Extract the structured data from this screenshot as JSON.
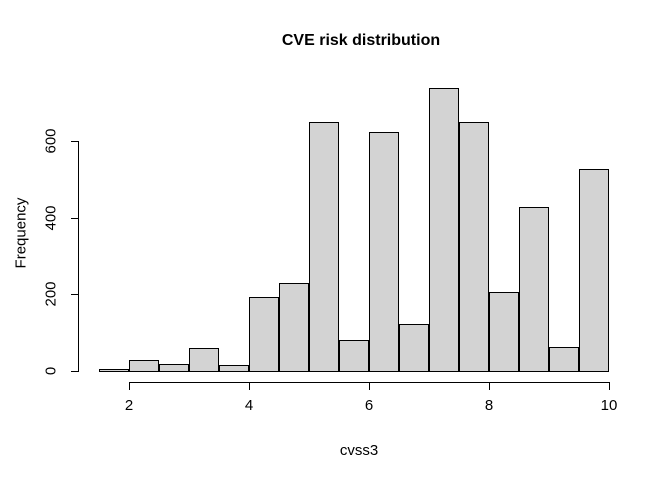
{
  "title": "CVE risk distribution",
  "colors": {
    "background": "#ffffff",
    "bar_fill": "#d3d3d3",
    "bar_border": "#000000",
    "axis": "#000000",
    "text": "#000000"
  },
  "chart_data": {
    "type": "bar",
    "subtype": "histogram",
    "title": "CVE risk distribution",
    "xlabel": "cvss3",
    "ylabel": "Frequency",
    "bin_edges": [
      1.5,
      2.0,
      2.5,
      3.0,
      3.5,
      4.0,
      4.5,
      5.0,
      5.5,
      6.0,
      6.5,
      7.0,
      7.5,
      8.0,
      8.5,
      9.0,
      9.5,
      10.0
    ],
    "counts": [
      3,
      25,
      15,
      57,
      12,
      190,
      228,
      646,
      78,
      620,
      120,
      735,
      648,
      204,
      424,
      61,
      524
    ],
    "x_ticks": [
      2,
      4,
      6,
      8,
      10
    ],
    "x_tick_labels": [
      "2",
      "4",
      "6",
      "8",
      "10"
    ],
    "y_ticks": [
      0,
      200,
      400,
      600
    ],
    "y_tick_labels": [
      "0",
      "200",
      "400",
      "600"
    ],
    "xlim": [
      1.5,
      10
    ],
    "ylim": [
      0,
      735
    ],
    "grid": false,
    "legend": null
  }
}
